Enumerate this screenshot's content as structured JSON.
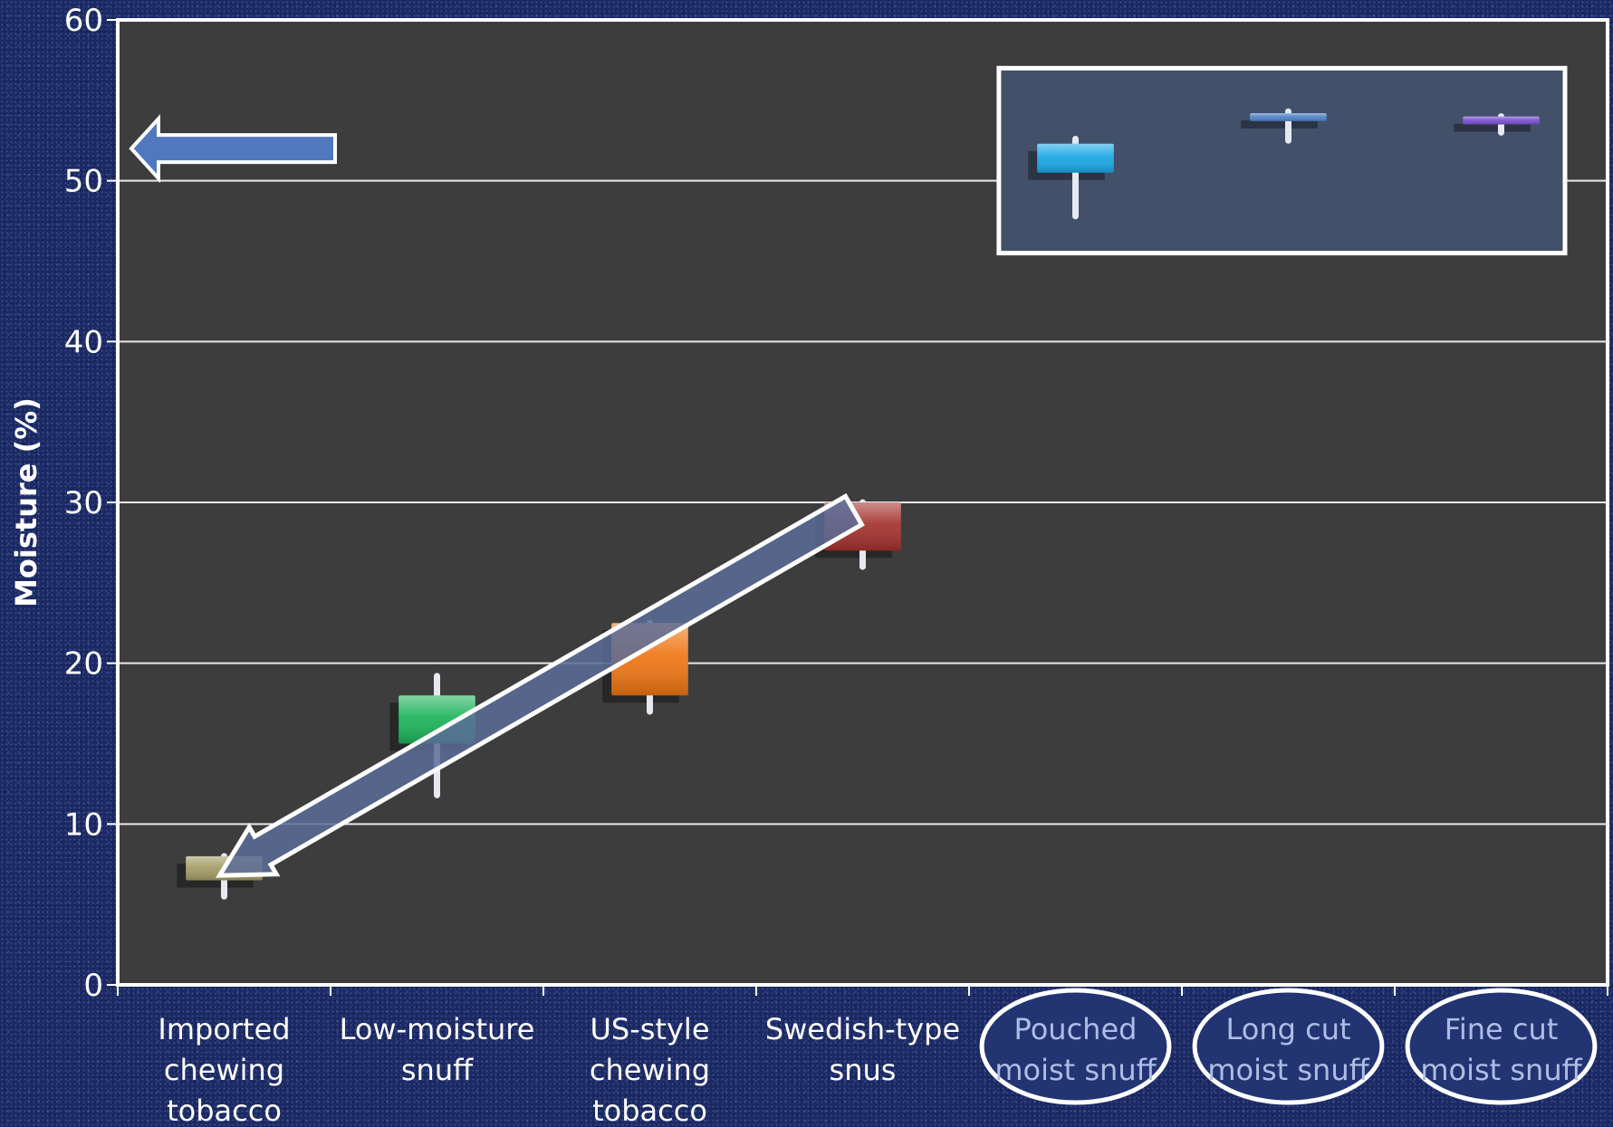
{
  "chart_data": {
    "type": "box",
    "title": "",
    "xlabel": "",
    "ylabel": "Moisture (%)",
    "ylim": [
      0,
      60
    ],
    "yticks": [
      "0",
      "10",
      "20",
      "30",
      "40",
      "50",
      "60"
    ],
    "grid": true,
    "categories": [
      [
        "Imported",
        "chewing",
        "tobacco"
      ],
      [
        "Low-moisture",
        "snuff"
      ],
      [
        "US-style",
        "chewing",
        "tobacco"
      ],
      [
        "Swedish-type",
        "snus"
      ],
      [
        "Pouched",
        "moist snuff"
      ],
      [
        "Long cut",
        "moist snuff"
      ],
      [
        "Fine cut",
        "moist snuff"
      ]
    ],
    "boxes": [
      {
        "q1": 6.5,
        "q3": 8.0,
        "min": 5.5,
        "max": 8.0,
        "color": "#a39c64"
      },
      {
        "q1": 15.0,
        "q3": 18.0,
        "min": 11.8,
        "max": 19.2,
        "color": "#1db35a"
      },
      {
        "q1": 18.0,
        "q3": 22.5,
        "min": 17.0,
        "max": 22.5,
        "color": "#ef7614"
      },
      {
        "q1": 27.0,
        "q3": 30.0,
        "min": 26.0,
        "max": 30.0,
        "color": "#a3312d"
      },
      {
        "q1": 50.5,
        "q3": 52.3,
        "min": 47.8,
        "max": 52.6,
        "color": "#19a8e6"
      },
      {
        "q1": 53.7,
        "q3": 54.2,
        "min": 52.5,
        "max": 54.3,
        "color": "#4f81c6"
      },
      {
        "q1": 53.5,
        "q3": 54.0,
        "min": 53.0,
        "max": 54.0,
        "color": "#7b4fd0"
      }
    ],
    "highlighted_categories": [
      4,
      5,
      6
    ],
    "colors": {
      "plot_bg": "#3d3d3d",
      "frame": "#ffffff",
      "arrow_fill": "#4f78bf",
      "diag_arrow_fill": "#5a6c98",
      "highlight_box_fill": "#43506a"
    }
  }
}
